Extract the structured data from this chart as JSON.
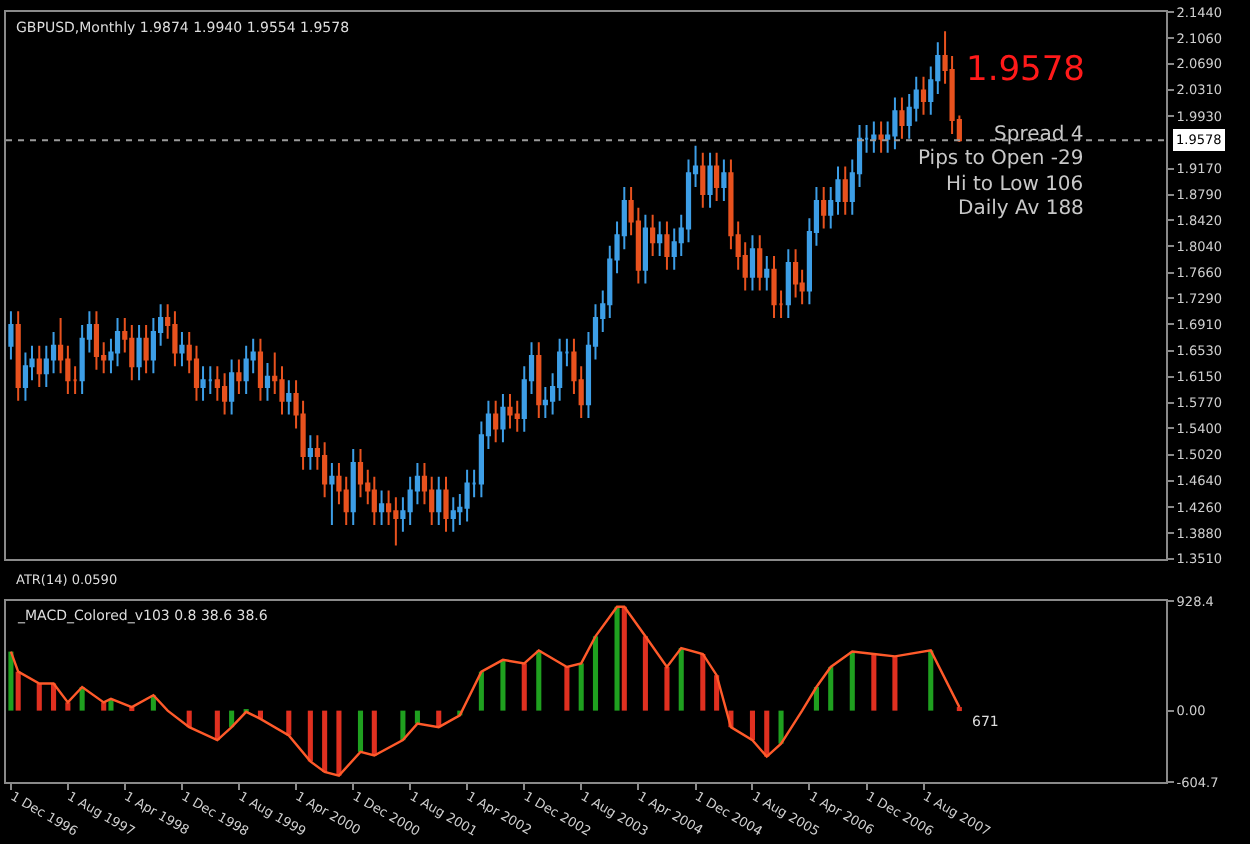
{
  "chart_data": [
    {
      "type": "candlestick",
      "title": "GBPUSD,Monthly 1.9874 1.9940 1.9554 1.9578",
      "x": [
        "1996-12",
        "1997-01",
        "1997-02",
        "1997-03",
        "1997-04",
        "1997-05",
        "1997-06",
        "1997-07",
        "1997-08",
        "1997-09",
        "1997-10",
        "1997-11",
        "1997-12",
        "1998-01",
        "1998-02",
        "1998-03",
        "1998-04",
        "1998-05",
        "1998-06",
        "1998-07",
        "1998-08",
        "1998-09",
        "1998-10",
        "1998-11",
        "1998-12",
        "1999-01",
        "1999-02",
        "1999-03",
        "1999-04",
        "1999-05",
        "1999-06",
        "1999-07",
        "1999-08",
        "1999-09",
        "1999-10",
        "1999-11",
        "1999-12",
        "2000-01",
        "2000-02",
        "2000-03",
        "2000-04",
        "2000-05",
        "2000-06",
        "2000-07",
        "2000-08",
        "2000-09",
        "2000-10",
        "2000-11",
        "2000-12",
        "2001-01",
        "2001-02",
        "2001-03",
        "2001-04",
        "2001-05",
        "2001-06",
        "2001-07",
        "2001-08",
        "2001-09",
        "2001-10",
        "2001-11",
        "2001-12",
        "2002-01",
        "2002-02",
        "2002-03",
        "2002-04",
        "2002-05",
        "2002-06",
        "2002-07",
        "2002-08",
        "2002-09",
        "2002-10",
        "2002-11",
        "2002-12",
        "2003-01",
        "2003-02",
        "2003-03",
        "2003-04",
        "2003-05",
        "2003-06",
        "2003-07",
        "2003-08",
        "2003-09",
        "2003-10",
        "2003-11",
        "2003-12",
        "2004-01",
        "2004-02",
        "2004-03",
        "2004-04",
        "2004-05",
        "2004-06",
        "2004-07",
        "2004-08",
        "2004-09",
        "2004-10",
        "2004-11",
        "2004-12",
        "2005-01",
        "2005-02",
        "2005-03",
        "2005-04",
        "2005-05",
        "2005-06",
        "2005-07",
        "2005-08",
        "2005-09",
        "2005-10",
        "2005-11",
        "2005-12",
        "2006-01",
        "2006-02",
        "2006-03",
        "2006-04",
        "2006-05",
        "2006-06",
        "2006-07",
        "2006-08",
        "2006-09",
        "2006-10",
        "2006-11",
        "2006-12",
        "2007-01",
        "2007-02",
        "2007-03",
        "2007-04",
        "2007-05",
        "2007-06",
        "2007-07",
        "2007-08",
        "2007-09",
        "2007-10",
        "2007-11",
        "2007-12",
        "2008-01"
      ],
      "ohlc": [
        [
          1.66,
          1.71,
          1.64,
          1.69
        ],
        [
          1.69,
          1.71,
          1.58,
          1.6
        ],
        [
          1.6,
          1.65,
          1.58,
          1.63
        ],
        [
          1.63,
          1.66,
          1.61,
          1.64
        ],
        [
          1.64,
          1.66,
          1.6,
          1.62
        ],
        [
          1.62,
          1.66,
          1.6,
          1.64
        ],
        [
          1.64,
          1.68,
          1.62,
          1.66
        ],
        [
          1.66,
          1.7,
          1.62,
          1.64
        ],
        [
          1.64,
          1.66,
          1.59,
          1.61
        ],
        [
          1.61,
          1.63,
          1.59,
          1.61
        ],
        [
          1.61,
          1.69,
          1.59,
          1.67
        ],
        [
          1.67,
          1.71,
          1.65,
          1.69
        ],
        [
          1.69,
          1.71,
          1.625,
          1.645
        ],
        [
          1.645,
          1.665,
          1.62,
          1.64
        ],
        [
          1.64,
          1.67,
          1.62,
          1.65
        ],
        [
          1.65,
          1.7,
          1.63,
          1.68
        ],
        [
          1.68,
          1.7,
          1.65,
          1.67
        ],
        [
          1.67,
          1.69,
          1.61,
          1.63
        ],
        [
          1.63,
          1.69,
          1.61,
          1.67
        ],
        [
          1.67,
          1.69,
          1.62,
          1.64
        ],
        [
          1.64,
          1.7,
          1.62,
          1.68
        ],
        [
          1.68,
          1.72,
          1.66,
          1.7
        ],
        [
          1.7,
          1.72,
          1.67,
          1.69
        ],
        [
          1.69,
          1.71,
          1.63,
          1.65
        ],
        [
          1.65,
          1.68,
          1.63,
          1.66
        ],
        [
          1.66,
          1.68,
          1.62,
          1.64
        ],
        [
          1.64,
          1.66,
          1.58,
          1.6
        ],
        [
          1.6,
          1.63,
          1.58,
          1.61
        ],
        [
          1.61,
          1.63,
          1.59,
          1.61
        ],
        [
          1.61,
          1.63,
          1.58,
          1.6
        ],
        [
          1.6,
          1.62,
          1.56,
          1.58
        ],
        [
          1.58,
          1.64,
          1.56,
          1.62
        ],
        [
          1.62,
          1.64,
          1.59,
          1.61
        ],
        [
          1.61,
          1.66,
          1.59,
          1.64
        ],
        [
          1.64,
          1.67,
          1.62,
          1.65
        ],
        [
          1.65,
          1.67,
          1.58,
          1.6
        ],
        [
          1.6,
          1.635,
          1.58,
          1.615
        ],
        [
          1.615,
          1.65,
          1.59,
          1.61
        ],
        [
          1.61,
          1.63,
          1.56,
          1.58
        ],
        [
          1.58,
          1.61,
          1.56,
          1.59
        ],
        [
          1.59,
          1.61,
          1.54,
          1.56
        ],
        [
          1.56,
          1.58,
          1.48,
          1.5
        ],
        [
          1.5,
          1.53,
          1.48,
          1.51
        ],
        [
          1.51,
          1.53,
          1.48,
          1.5
        ],
        [
          1.5,
          1.52,
          1.44,
          1.46
        ],
        [
          1.46,
          1.49,
          1.4,
          1.47
        ],
        [
          1.47,
          1.49,
          1.43,
          1.45
        ],
        [
          1.45,
          1.47,
          1.4,
          1.42
        ],
        [
          1.42,
          1.51,
          1.4,
          1.49
        ],
        [
          1.49,
          1.51,
          1.44,
          1.46
        ],
        [
          1.46,
          1.48,
          1.43,
          1.45
        ],
        [
          1.45,
          1.47,
          1.4,
          1.42
        ],
        [
          1.42,
          1.45,
          1.4,
          1.43
        ],
        [
          1.43,
          1.45,
          1.4,
          1.42
        ],
        [
          1.42,
          1.44,
          1.37,
          1.41
        ],
        [
          1.41,
          1.44,
          1.39,
          1.42
        ],
        [
          1.42,
          1.47,
          1.4,
          1.45
        ],
        [
          1.45,
          1.49,
          1.43,
          1.47
        ],
        [
          1.47,
          1.49,
          1.43,
          1.45
        ],
        [
          1.45,
          1.47,
          1.4,
          1.42
        ],
        [
          1.42,
          1.47,
          1.4,
          1.45
        ],
        [
          1.45,
          1.47,
          1.39,
          1.41
        ],
        [
          1.41,
          1.44,
          1.39,
          1.42
        ],
        [
          1.42,
          1.445,
          1.4,
          1.425
        ],
        [
          1.425,
          1.48,
          1.405,
          1.46
        ],
        [
          1.46,
          1.48,
          1.44,
          1.46
        ],
        [
          1.46,
          1.55,
          1.44,
          1.53
        ],
        [
          1.53,
          1.58,
          1.51,
          1.56
        ],
        [
          1.56,
          1.58,
          1.52,
          1.54
        ],
        [
          1.54,
          1.59,
          1.52,
          1.57
        ],
        [
          1.57,
          1.59,
          1.54,
          1.56
        ],
        [
          1.56,
          1.58,
          1.535,
          1.555
        ],
        [
          1.555,
          1.63,
          1.535,
          1.61
        ],
        [
          1.61,
          1.665,
          1.59,
          1.645
        ],
        [
          1.645,
          1.665,
          1.555,
          1.575
        ],
        [
          1.575,
          1.6,
          1.555,
          1.58
        ],
        [
          1.58,
          1.62,
          1.56,
          1.6
        ],
        [
          1.6,
          1.67,
          1.58,
          1.65
        ],
        [
          1.65,
          1.67,
          1.63,
          1.65
        ],
        [
          1.65,
          1.67,
          1.59,
          1.61
        ],
        [
          1.61,
          1.63,
          1.555,
          1.575
        ],
        [
          1.575,
          1.68,
          1.555,
          1.66
        ],
        [
          1.66,
          1.72,
          1.64,
          1.7
        ],
        [
          1.7,
          1.74,
          1.68,
          1.72
        ],
        [
          1.72,
          1.805,
          1.7,
          1.785
        ],
        [
          1.785,
          1.84,
          1.765,
          1.82
        ],
        [
          1.82,
          1.89,
          1.8,
          1.87
        ],
        [
          1.87,
          1.89,
          1.82,
          1.84
        ],
        [
          1.84,
          1.86,
          1.75,
          1.77
        ],
        [
          1.77,
          1.85,
          1.75,
          1.83
        ],
        [
          1.83,
          1.85,
          1.79,
          1.81
        ],
        [
          1.81,
          1.84,
          1.79,
          1.82
        ],
        [
          1.82,
          1.84,
          1.77,
          1.79
        ],
        [
          1.79,
          1.83,
          1.77,
          1.81
        ],
        [
          1.81,
          1.85,
          1.79,
          1.83
        ],
        [
          1.83,
          1.93,
          1.81,
          1.91
        ],
        [
          1.91,
          1.95,
          1.89,
          1.92
        ],
        [
          1.92,
          1.94,
          1.86,
          1.88
        ],
        [
          1.88,
          1.94,
          1.86,
          1.92
        ],
        [
          1.92,
          1.94,
          1.87,
          1.89
        ],
        [
          1.89,
          1.93,
          1.87,
          1.91
        ],
        [
          1.91,
          1.93,
          1.8,
          1.82
        ],
        [
          1.82,
          1.84,
          1.77,
          1.79
        ],
        [
          1.79,
          1.81,
          1.74,
          1.76
        ],
        [
          1.76,
          1.82,
          1.74,
          1.8
        ],
        [
          1.8,
          1.82,
          1.74,
          1.76
        ],
        [
          1.76,
          1.79,
          1.74,
          1.77
        ],
        [
          1.77,
          1.79,
          1.7,
          1.72
        ],
        [
          1.72,
          1.74,
          1.7,
          1.72
        ],
        [
          1.72,
          1.8,
          1.7,
          1.78
        ],
        [
          1.78,
          1.8,
          1.73,
          1.75
        ],
        [
          1.75,
          1.77,
          1.72,
          1.74
        ],
        [
          1.74,
          1.845,
          1.72,
          1.825
        ],
        [
          1.825,
          1.89,
          1.805,
          1.87
        ],
        [
          1.87,
          1.89,
          1.83,
          1.85
        ],
        [
          1.85,
          1.89,
          1.83,
          1.87
        ],
        [
          1.87,
          1.92,
          1.85,
          1.9
        ],
        [
          1.9,
          1.92,
          1.85,
          1.87
        ],
        [
          1.87,
          1.93,
          1.85,
          1.91
        ],
        [
          1.91,
          1.98,
          1.89,
          1.96
        ],
        [
          1.96,
          1.98,
          1.94,
          1.96
        ],
        [
          1.96,
          1.985,
          1.94,
          1.965
        ],
        [
          1.965,
          1.985,
          1.94,
          1.96
        ],
        [
          1.96,
          1.985,
          1.94,
          1.965
        ],
        [
          1.965,
          2.02,
          1.945,
          2.0
        ],
        [
          2.0,
          2.02,
          1.96,
          1.98
        ],
        [
          1.98,
          2.025,
          1.96,
          2.005
        ],
        [
          2.005,
          2.05,
          1.985,
          2.03
        ],
        [
          2.03,
          2.05,
          1.995,
          2.015
        ],
        [
          2.015,
          2.065,
          1.995,
          2.045
        ],
        [
          2.045,
          2.1,
          2.025,
          2.08
        ],
        [
          2.08,
          2.116,
          2.04,
          2.06
        ],
        [
          2.06,
          2.08,
          1.967,
          1.9874
        ],
        [
          1.9874,
          1.994,
          1.9554,
          1.9578
        ]
      ],
      "xlim": [
        "1996-11-10",
        "2010-06-01"
      ],
      "ylim": [
        1.351,
        2.144
      ],
      "yticks": [
        {
          "value": 2.144,
          "label": "2.1440"
        },
        {
          "value": 2.106,
          "label": "2.1060"
        },
        {
          "value": 2.069,
          "label": "2.0690"
        },
        {
          "value": 2.031,
          "label": "2.0310"
        },
        {
          "value": 1.993,
          "label": "1.9930"
        },
        {
          "value": 1.917,
          "label": "1.9170"
        },
        {
          "value": 1.879,
          "label": "1.8790"
        },
        {
          "value": 1.842,
          "label": "1.8420"
        },
        {
          "value": 1.804,
          "label": "1.8040"
        },
        {
          "value": 1.766,
          "label": "1.7660"
        },
        {
          "value": 1.729,
          "label": "1.7290"
        },
        {
          "value": 1.691,
          "label": "1.6910"
        },
        {
          "value": 1.653,
          "label": "1.6530"
        },
        {
          "value": 1.615,
          "label": "1.6150"
        },
        {
          "value": 1.577,
          "label": "1.5770"
        },
        {
          "value": 1.54,
          "label": "1.5400"
        },
        {
          "value": 1.502,
          "label": "1.5020"
        },
        {
          "value": 1.464,
          "label": "1.4640"
        },
        {
          "value": 1.426,
          "label": "1.4260"
        },
        {
          "value": 1.388,
          "label": "1.3880"
        },
        {
          "value": 1.351,
          "label": "1.3510"
        }
      ],
      "ref_lines": [
        {
          "axis": "y",
          "value": 1.9578,
          "label": "1.9578",
          "color": "#9a9a9a",
          "line_style": "dotted"
        }
      ],
      "annotations": [
        "1.9578",
        "Spread 4",
        "Pips to Open -29",
        "Hi to Low 106",
        "Daily Av 188",
        "ATR(14) 0.0590"
      ],
      "tick_labels": "y",
      "grid": false
    },
    {
      "type": "bar",
      "title": "_MACD_Colored_v103 0.8 38.6 38.6",
      "x": [
        "1996-12",
        "1997-01",
        "1997-04",
        "1997-06",
        "1997-08",
        "1997-10",
        "1998-01",
        "1998-02",
        "1998-05",
        "1998-08",
        "1998-10",
        "1999-01",
        "1999-05",
        "1999-07",
        "1999-09",
        "1999-11",
        "2000-03",
        "2000-06",
        "2000-08",
        "2000-10",
        "2001-01",
        "2001-03",
        "2001-07",
        "2001-09",
        "2001-12",
        "2002-03",
        "2002-06",
        "2002-09",
        "2002-12",
        "2003-02",
        "2003-06",
        "2003-08",
        "2003-10",
        "2004-01",
        "2004-02",
        "2004-05",
        "2004-08",
        "2004-10",
        "2005-01",
        "2005-03",
        "2005-05",
        "2005-08",
        "2005-10",
        "2005-12",
        "2006-03",
        "2006-05",
        "2006-07",
        "2006-10",
        "2007-01",
        "2007-04",
        "2007-09",
        "2008-01"
      ],
      "series": [
        {
          "type": "bar",
          "colors": [
            "#1fa01f",
            "#e03020",
            "#e03020",
            "#e03020",
            "#e03020",
            "#1fa01f",
            "#e03020",
            "#1fa01f",
            "#e03020",
            "#1fa01f",
            "#e03020",
            "#e03020",
            "#e03020",
            "#1fa01f",
            "#1fa01f",
            "#e03020",
            "#e03020",
            "#e03020",
            "#e03020",
            "#e03020",
            "#1fa01f",
            "#e03020",
            "#1fa01f",
            "#1fa01f",
            "#e03020",
            "#1fa01f",
            "#1fa01f",
            "#1fa01f",
            "#e03020",
            "#1fa01f",
            "#e03020",
            "#1fa01f",
            "#1fa01f",
            "#1fa01f",
            "#e03020",
            "#e03020",
            "#e03020",
            "#1fa01f",
            "#e03020",
            "#e03020",
            "#e03020",
            "#e03020",
            "#e03020",
            "#1fa01f",
            "#1fa01f",
            "#1fa01f",
            "#1fa01f",
            "#1fa01f",
            "#e03020",
            "#e03020",
            "#1fa01f",
            "#e03020"
          ],
          "values": [
            500,
            330,
            230,
            230,
            70,
            200,
            70,
            100,
            30,
            130,
            0,
            -140,
            -250,
            -140,
            -10,
            -70,
            -210,
            -430,
            -520,
            -550,
            -350,
            -380,
            -250,
            -110,
            -140,
            -40,
            330,
            430,
            400,
            510,
            370,
            400,
            630,
            880,
            880,
            630,
            370,
            530,
            480,
            300,
            -140,
            -250,
            -390,
            -280,
            0,
            200,
            370,
            500,
            480,
            460,
            510,
            30
          ]
        },
        {
          "type": "line",
          "color": "#ff5a2a",
          "values": [
            500,
            330,
            230,
            230,
            70,
            200,
            70,
            100,
            30,
            130,
            0,
            -140,
            -250,
            -140,
            -10,
            -70,
            -210,
            -430,
            -520,
            -550,
            -350,
            -380,
            -250,
            -110,
            -140,
            -40,
            330,
            430,
            400,
            510,
            370,
            400,
            630,
            880,
            880,
            630,
            370,
            530,
            480,
            300,
            -140,
            -250,
            -390,
            -280,
            0,
            200,
            370,
            500,
            480,
            460,
            510,
            30
          ]
        }
      ],
      "xlim": [
        "1996-11-10",
        "2010-06-01"
      ],
      "xticks": [
        {
          "value": "1996-12-01",
          "label": "1 Dec 1996"
        },
        {
          "value": "1997-08-01",
          "label": "1 Aug 1997"
        },
        {
          "value": "1998-04-01",
          "label": "1 Apr 1998"
        },
        {
          "value": "1998-12-01",
          "label": "1 Dec 1998"
        },
        {
          "value": "1999-08-01",
          "label": "1 Aug 1999"
        },
        {
          "value": "2000-04-01",
          "label": "1 Apr 2000"
        },
        {
          "value": "2000-12-01",
          "label": "1 Dec 2000"
        },
        {
          "value": "2001-08-01",
          "label": "1 Aug 2001"
        },
        {
          "value": "2002-04-01",
          "label": "1 Apr 2002"
        },
        {
          "value": "2002-12-01",
          "label": "1 Dec 2002"
        },
        {
          "value": "2003-08-01",
          "label": "1 Aug 2003"
        },
        {
          "value": "2004-04-01",
          "label": "1 Apr 2004"
        },
        {
          "value": "2004-12-01",
          "label": "1 Dec 2004"
        },
        {
          "value": "2005-08-01",
          "label": "1 Aug 2005"
        },
        {
          "value": "2006-04-01",
          "label": "1 Apr 2006"
        },
        {
          "value": "2006-12-01",
          "label": "1 Dec 2006"
        },
        {
          "value": "2007-08-01",
          "label": "1 Aug 2007"
        }
      ],
      "ylim": [
        -604.7,
        928.4
      ],
      "yticks": [
        928.4,
        {
          "value": 0,
          "label": "0.00"
        },
        -604.7
      ],
      "annotations": [
        "671"
      ],
      "grid": false
    }
  ]
}
